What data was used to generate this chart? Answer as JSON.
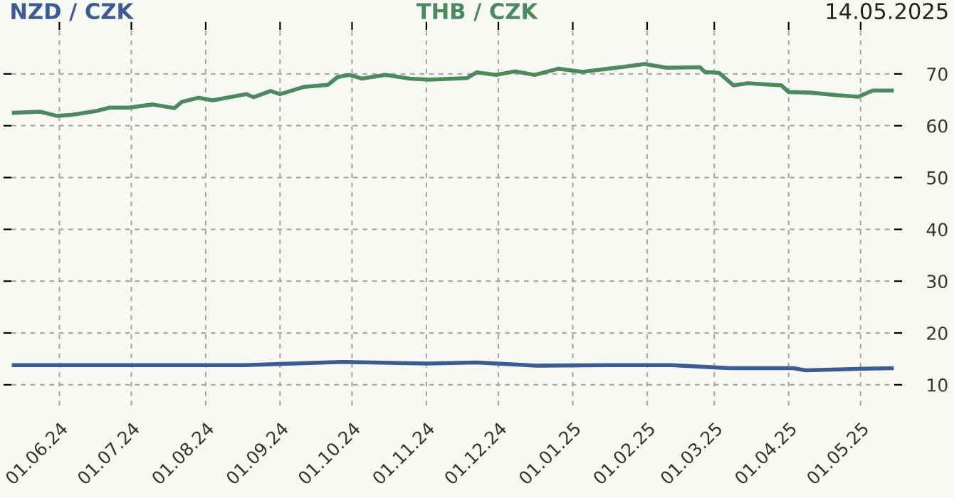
{
  "chart_data": {
    "type": "line",
    "title": "14.05.2025",
    "xlim": [
      "2024-05-12",
      "2025-05-15"
    ],
    "xticks": [
      {
        "value": "2024-06-01",
        "label": "01.06.24"
      },
      {
        "value": "2024-07-01",
        "label": "01.07.24"
      },
      {
        "value": "2024-08-01",
        "label": "01.08.24"
      },
      {
        "value": "2024-09-01",
        "label": "01.09.24"
      },
      {
        "value": "2024-10-01",
        "label": "01.10.24"
      },
      {
        "value": "2024-11-01",
        "label": "01.11.24"
      },
      {
        "value": "2024-12-01",
        "label": "01.12.24"
      },
      {
        "value": "2025-01-01",
        "label": "01.01.25"
      },
      {
        "value": "2025-02-01",
        "label": "01.02.25"
      },
      {
        "value": "2025-03-01",
        "label": "01.03.25"
      },
      {
        "value": "2025-04-01",
        "label": "01.04.25"
      },
      {
        "value": "2025-05-01",
        "label": "01.05.25"
      }
    ],
    "ylim": [
      6,
      78.5
    ],
    "yticks": [
      10,
      20,
      30,
      40,
      50,
      60,
      70
    ],
    "grid": true,
    "legend": "top",
    "line_style": "solid",
    "series": [
      {
        "name": "NZD / CZK",
        "color": "#3a5a98",
        "x": [
          "2024-05-13",
          "2024-08-17",
          "2024-09-27",
          "2024-11-01",
          "2024-11-22",
          "2024-12-17",
          "2025-01-16",
          "2025-02-11",
          "2025-03-08",
          "2025-04-03",
          "2025-04-08",
          "2025-05-03",
          "2025-05-14"
        ],
        "values": [
          13.8,
          13.8,
          14.4,
          14.1,
          14.3,
          13.7,
          13.8,
          13.8,
          13.2,
          13.2,
          12.8,
          13.1,
          13.2
        ]
      },
      {
        "name": "THB / CZK",
        "color": "#4a8a5e",
        "x": [
          "2024-05-13",
          "2024-05-24",
          "2024-05-31",
          "2024-06-06",
          "2024-06-16",
          "2024-06-22",
          "2024-06-30",
          "2024-07-10",
          "2024-07-19",
          "2024-07-22",
          "2024-07-29",
          "2024-08-04",
          "2024-08-18",
          "2024-08-21",
          "2024-08-28",
          "2024-09-01",
          "2024-09-11",
          "2024-09-21",
          "2024-09-25",
          "2024-09-30",
          "2024-10-05",
          "2024-10-15",
          "2024-10-25",
          "2024-11-02",
          "2024-11-18",
          "2024-11-22",
          "2024-11-30",
          "2024-12-08",
          "2024-12-16",
          "2024-12-26",
          "2025-01-05",
          "2025-01-21",
          "2025-01-31",
          "2025-02-09",
          "2025-02-23",
          "2025-02-25",
          "2025-03-03",
          "2025-03-09",
          "2025-03-15",
          "2025-03-29",
          "2025-04-01",
          "2025-04-10",
          "2025-04-21",
          "2025-04-30",
          "2025-05-06",
          "2025-05-14"
        ],
        "values": [
          62.5,
          62.7,
          61.9,
          62.1,
          62.8,
          63.5,
          63.5,
          64.1,
          63.4,
          64.6,
          65.4,
          64.9,
          66.1,
          65.5,
          66.7,
          66.1,
          67.5,
          67.9,
          69.4,
          69.8,
          69.1,
          69.8,
          69.1,
          68.9,
          69.2,
          70.3,
          69.8,
          70.5,
          69.8,
          71.0,
          70.4,
          71.3,
          71.9,
          71.2,
          71.3,
          70.4,
          70.2,
          67.8,
          68.2,
          67.8,
          66.5,
          66.4,
          65.9,
          65.6,
          66.8,
          66.8
        ]
      }
    ]
  }
}
